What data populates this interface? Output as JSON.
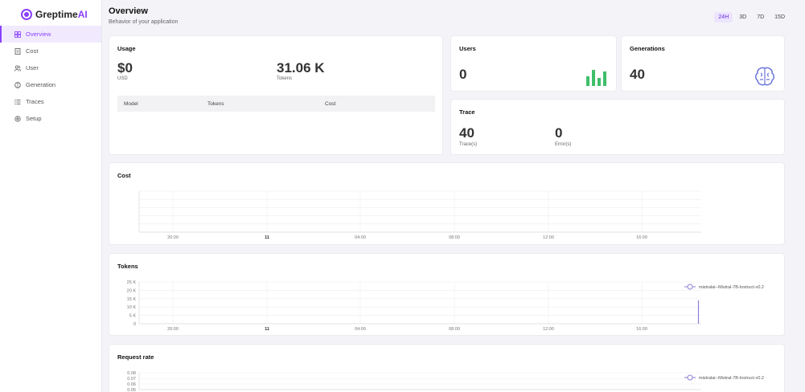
{
  "brand": {
    "name_main": "Greptime",
    "name_accent": "AI"
  },
  "sidebar": {
    "items": [
      {
        "label": "Overview",
        "icon": "grid-icon",
        "active": true
      },
      {
        "label": "Cost",
        "icon": "receipt-icon",
        "active": false
      },
      {
        "label": "User",
        "icon": "users-icon",
        "active": false
      },
      {
        "label": "Generation",
        "icon": "brain-icon",
        "active": false
      },
      {
        "label": "Traces",
        "icon": "list-icon",
        "active": false
      },
      {
        "label": "Setup",
        "icon": "gear-icon",
        "active": false
      }
    ]
  },
  "header": {
    "title": "Overview",
    "subtitle": "Behavior of your application",
    "ranges": [
      "24H",
      "3D",
      "7D",
      "15D"
    ],
    "active_range": "24H"
  },
  "usage": {
    "title": "Usage",
    "cost_value": "$0",
    "cost_unit": "USD",
    "tokens_value": "31.06 K",
    "tokens_unit": "Tokens",
    "table_headers": [
      "Model",
      "Tokens",
      "Cost"
    ]
  },
  "users": {
    "title": "Users",
    "value": "0",
    "icon": "bar-chart-icon"
  },
  "generations": {
    "title": "Generations",
    "value": "40",
    "icon": "brain-icon"
  },
  "trace": {
    "title": "Trace",
    "traces_value": "40",
    "traces_label": "Trace(s)",
    "errors_value": "0",
    "errors_label": "Error(s)"
  },
  "colors": {
    "accent": "#8a3ffc",
    "green": "#3fbf6a",
    "series": "#8e7fd6"
  },
  "chart_data": [
    {
      "type": "line",
      "title": "Cost",
      "x_ticks": [
        "20:00",
        "11",
        "04:00",
        "08:00",
        "12:00",
        "16:00"
      ],
      "series": [],
      "grid": true
    },
    {
      "type": "line",
      "title": "Tokens",
      "x_ticks": [
        "20:00",
        "11",
        "04:00",
        "08:00",
        "12:00",
        "16:00"
      ],
      "y_ticks": [
        "25 K",
        "20 K",
        "15 K",
        "10 K",
        "5 K",
        "0"
      ],
      "ylim": [
        0,
        25000
      ],
      "series": [
        {
          "name": "mistralai--Mistral-7B-Instruct-v0.2",
          "points": [
            [
              0.995,
              0
            ],
            [
              0.995,
              14000
            ]
          ]
        }
      ],
      "legend": "top-right",
      "grid": true
    },
    {
      "type": "line",
      "title": "Request rate",
      "y_ticks": [
        "0.08",
        "0.07",
        "0.06",
        "0.05"
      ],
      "series": [
        {
          "name": "mistralai--Mistral-7B-Instruct-v0.2"
        }
      ],
      "legend": "top-right",
      "grid": true
    }
  ]
}
